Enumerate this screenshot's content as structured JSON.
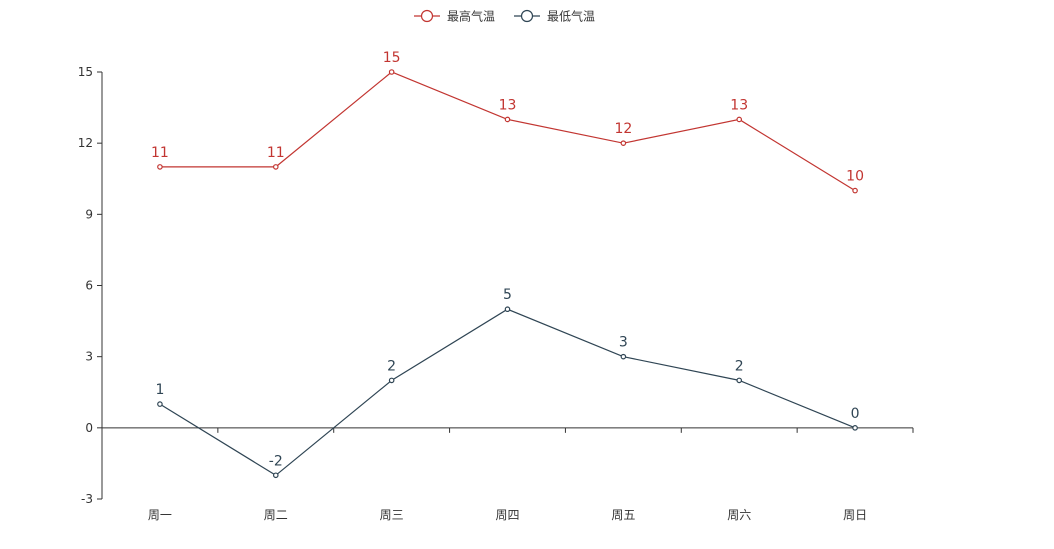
{
  "chart_data": {
    "type": "line",
    "categories": [
      "周一",
      "周二",
      "周三",
      "周四",
      "周五",
      "周六",
      "周日"
    ],
    "series": [
      {
        "name": "最高气温",
        "color": "#c23531",
        "values": [
          11,
          11,
          15,
          13,
          12,
          13,
          10
        ]
      },
      {
        "name": "最低气温",
        "color": "#2f4554",
        "values": [
          1,
          -2,
          2,
          5,
          3,
          2,
          0
        ]
      }
    ],
    "ylim": [
      -3,
      15
    ],
    "yticks": [
      -3,
      0,
      3,
      6,
      9,
      12,
      15
    ],
    "legend_position": "top-center",
    "grid": false,
    "data_labels": true
  }
}
